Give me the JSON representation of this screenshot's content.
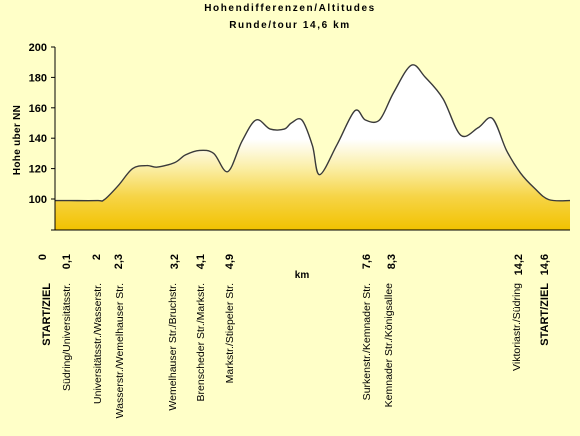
{
  "chart_data": {
    "type": "area",
    "title": "Hohendifferenzen/Altitudes",
    "subtitle": "Runde/tour 14,6 km",
    "xlabel": "km",
    "ylabel": "Hohe uber NN",
    "ylim": [
      0,
      200
    ],
    "yticks": [
      0,
      100,
      120,
      140,
      160,
      180,
      200
    ],
    "xlim": [
      0,
      14.6
    ],
    "xtick_labels": [
      "0",
      "0,1",
      "2",
      "2,3",
      "3,2",
      "4,1",
      "4,9",
      "7,6",
      "8,3",
      "14,2",
      "14,6"
    ],
    "grid": false,
    "legend": "none",
    "colors": {
      "fill_bottom": "#F2C200",
      "fill_top": "#FFFFFF",
      "line": "#3A3A3A",
      "background": "#FFFFC8"
    },
    "series": [
      {
        "values_x": [
          0.0,
          0.4,
          1.2,
          1.4,
          1.8,
          2.2,
          2.6,
          2.9,
          3.4,
          3.7,
          4.1,
          4.5,
          4.9,
          5.3,
          5.7,
          6.1,
          6.5,
          6.7,
          7.0,
          7.3,
          7.5,
          8.0,
          8.5,
          8.8,
          9.2,
          9.6,
          10.1,
          10.5,
          11.0,
          11.5,
          12.0,
          12.4,
          12.8,
          13.2,
          13.6,
          14.0,
          14.6
        ],
        "values_y": [
          95,
          95,
          95,
          98,
          109,
          120,
          122,
          121,
          124,
          129,
          132,
          130,
          118,
          138,
          152,
          146,
          146,
          150,
          152,
          135,
          116,
          136,
          158,
          152,
          152,
          170,
          188,
          180,
          166,
          142,
          147,
          153,
          132,
          117,
          107,
          98,
          95
        ]
      }
    ],
    "annotations": [
      "START/ZIEL",
      "Südring/Universitätsstr.",
      "Universitätsstr./Wasserstr.",
      "Wasserstr./Wemelhauser Str.",
      "Wemelhauser Str./Bruchstr.",
      "Brenscheder Str./Markstr.",
      "Markstr./Stiepeler Str.",
      "Surkenstr./Kemnader Str.",
      "Kemnader Str./Königsallee",
      "Viktoriastr./Südring",
      "START/ZIEL"
    ]
  }
}
